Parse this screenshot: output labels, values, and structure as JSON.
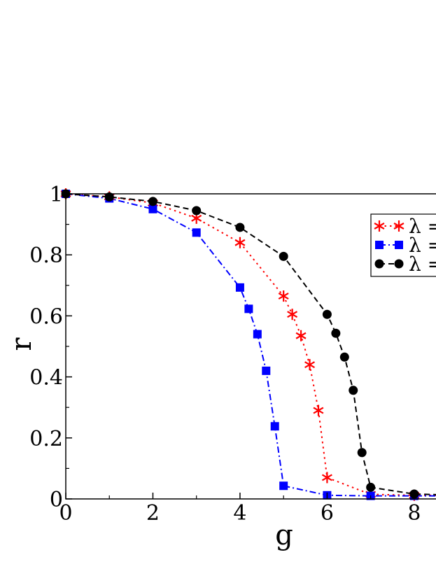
{
  "chart_data": {
    "type": "line",
    "xlabel": "g",
    "ylabel": "r",
    "xlim": [
      0,
      8.5
    ],
    "ylim": [
      0,
      1
    ],
    "xticks": [
      0,
      2,
      4,
      6,
      8
    ],
    "yticks": [
      0,
      0.2,
      0.4,
      0.6,
      0.8,
      1
    ],
    "xtick_labels": [
      "0",
      "2",
      "4",
      "6",
      "8"
    ],
    "ytick_labels": [
      "0",
      "0.2",
      "0.4",
      "0.6",
      "0.8",
      "1"
    ],
    "grid": false,
    "legend_position": "top-right",
    "series": [
      {
        "legend_label": "λ =",
        "color": "#ff0000",
        "marker": "star",
        "line": "dotted",
        "x": [
          0,
          1,
          2,
          3,
          4,
          5,
          5.2,
          5.4,
          5.6,
          5.8,
          6,
          7,
          8,
          8.5
        ],
        "y": [
          1.0,
          0.99,
          0.97,
          0.92,
          0.84,
          0.665,
          0.605,
          0.535,
          0.44,
          0.29,
          0.07,
          0.015,
          0.012,
          0.012
        ]
      },
      {
        "legend_label": "λ =",
        "color": "#0000ff",
        "marker": "square",
        "line": "dashdot",
        "x": [
          0,
          1,
          2,
          3,
          4,
          4.2,
          4.4,
          4.6,
          4.8,
          5,
          6,
          7,
          8,
          8.5
        ],
        "y": [
          1.0,
          0.985,
          0.95,
          0.873,
          0.693,
          0.623,
          0.54,
          0.42,
          0.238,
          0.043,
          0.012,
          0.01,
          0.01,
          0.01
        ]
      },
      {
        "legend_label": "λ =",
        "color": "#000000",
        "marker": "circle",
        "line": "dashed",
        "x": [
          0,
          1,
          2,
          3,
          4,
          5,
          6,
          6.2,
          6.4,
          6.6,
          6.8,
          7,
          8,
          8.5
        ],
        "y": [
          1.0,
          0.99,
          0.975,
          0.945,
          0.89,
          0.795,
          0.605,
          0.543,
          0.465,
          0.356,
          0.152,
          0.038,
          0.016,
          0.014
        ]
      }
    ]
  }
}
